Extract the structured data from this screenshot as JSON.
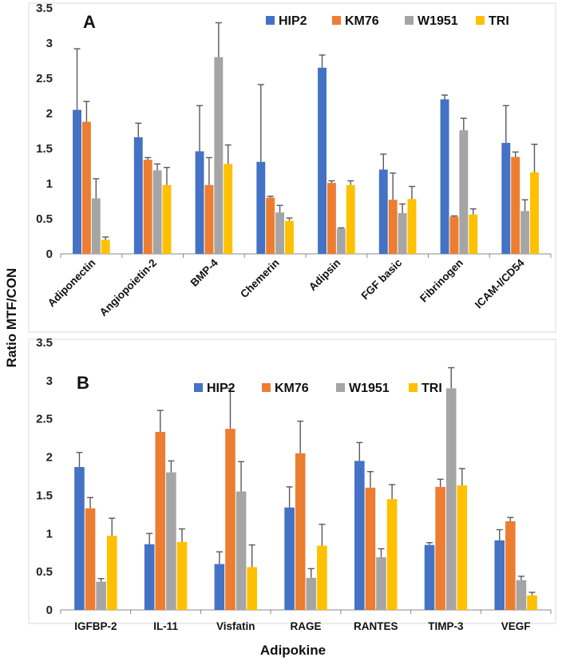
{
  "figure": {
    "ylabel": "Ratio MTF/CON",
    "xlabel": "Adipokine",
    "colors": {
      "HIP2": "#4472C4",
      "KM76": "#ED7D31",
      "W1951": "#A5A5A5",
      "TRI": "#FFC000",
      "error": "#595959"
    }
  },
  "chart_data": [
    {
      "type": "bar",
      "panel": "A",
      "title": "",
      "xlabel": "",
      "ylabel": "Ratio MTF/CON",
      "ylim": [
        0,
        3.5
      ],
      "yticks": [
        "0",
        "0.5",
        "1",
        "1.5",
        "2",
        "2.5",
        "3",
        "3.5"
      ],
      "legend": [
        "HIP2",
        "KM76",
        "W1951",
        "TRI"
      ],
      "legend_position": "top-right",
      "categories": [
        "Adiponectin",
        "Angiopoietin-2",
        "BMP-4",
        "Chemerin",
        "Adipsin",
        "FGF basic",
        "Fibrinogen",
        "ICAM-I/CD54"
      ],
      "series": [
        {
          "name": "HIP2",
          "values": [
            2.05,
            1.66,
            1.46,
            1.31,
            2.65,
            1.2,
            2.2,
            1.58
          ],
          "errors": [
            0.87,
            0.2,
            0.65,
            1.1,
            0.18,
            0.22,
            0.06,
            0.53
          ]
        },
        {
          "name": "KM76",
          "values": [
            1.88,
            1.34,
            0.98,
            0.8,
            1.01,
            0.77,
            0.53,
            1.38
          ],
          "errors": [
            0.29,
            0.03,
            0.39,
            0.02,
            0.03,
            0.38,
            0.01,
            0.07
          ]
        },
        {
          "name": "W1951",
          "values": [
            0.79,
            1.19,
            2.8,
            0.59,
            0.36,
            0.58,
            1.76,
            0.61
          ],
          "errors": [
            0.28,
            0.09,
            0.49,
            0.1,
            0.01,
            0.13,
            0.17,
            0.16
          ]
        },
        {
          "name": "TRI",
          "values": [
            0.2,
            0.98,
            1.28,
            0.47,
            0.98,
            0.78,
            0.56,
            1.16
          ],
          "errors": [
            0.04,
            0.25,
            0.27,
            0.04,
            0.06,
            0.18,
            0.08,
            0.4
          ]
        }
      ]
    },
    {
      "type": "bar",
      "panel": "B",
      "title": "",
      "xlabel": "Adipokine",
      "ylabel": "Ratio MTF/CON",
      "ylim": [
        0,
        3.5
      ],
      "yticks": [
        "0",
        "0.5",
        "1",
        "1.5",
        "2",
        "2.5",
        "3",
        "3.5"
      ],
      "legend": [
        "HIP2",
        "KM76",
        "W1951",
        "TRI"
      ],
      "legend_position": "top-center",
      "categories": [
        "IGFBP-2",
        "IL-11",
        "Visfatin",
        "RAGE",
        "RANTES",
        "TIMP-3",
        "VEGF"
      ],
      "series": [
        {
          "name": "HIP2",
          "values": [
            1.87,
            0.86,
            0.6,
            1.34,
            1.95,
            0.85,
            0.91
          ],
          "errors": [
            0.19,
            0.14,
            0.16,
            0.27,
            0.24,
            0.03,
            0.14
          ]
        },
        {
          "name": "KM76",
          "values": [
            1.33,
            2.33,
            2.37,
            2.05,
            1.6,
            1.61,
            1.16
          ],
          "errors": [
            0.14,
            0.28,
            0.53,
            0.42,
            0.21,
            0.1,
            0.05
          ]
        },
        {
          "name": "W1951",
          "values": [
            0.37,
            1.8,
            1.55,
            0.42,
            0.69,
            2.9,
            0.39
          ],
          "errors": [
            0.04,
            0.15,
            0.39,
            0.12,
            0.11,
            0.27,
            0.05
          ]
        },
        {
          "name": "TRI",
          "values": [
            0.97,
            0.89,
            0.56,
            0.84,
            1.45,
            1.63,
            0.19
          ],
          "errors": [
            0.23,
            0.17,
            0.29,
            0.28,
            0.19,
            0.22,
            0.04
          ]
        }
      ]
    }
  ]
}
